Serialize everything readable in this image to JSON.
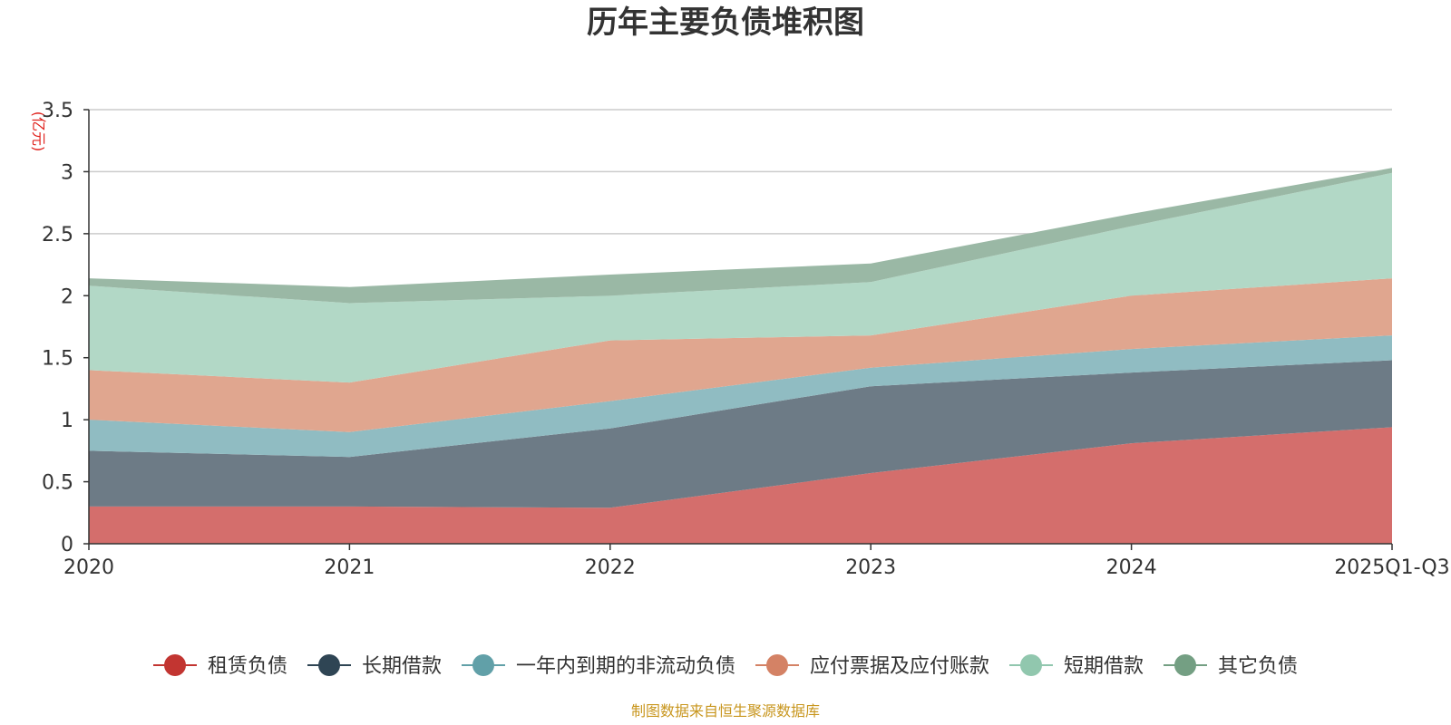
{
  "chart_data": {
    "type": "area",
    "stacked": true,
    "title": "历年主要负债堆积图",
    "ylabel": "(亿元)",
    "xlabel": "",
    "categories": [
      "2020",
      "2021",
      "2022",
      "2023",
      "2024",
      "2025Q1-Q3"
    ],
    "ylim": [
      0,
      3.5
    ],
    "yticks": [
      "0",
      "0.5",
      "1",
      "1.5",
      "2",
      "2.5",
      "3",
      "3.5"
    ],
    "ytick_values": [
      0,
      0.5,
      1,
      1.5,
      2,
      2.5,
      3,
      3.5
    ],
    "grid": true,
    "legend_position": "bottom",
    "series": [
      {
        "name": "租赁负债",
        "color": "#c23531",
        "fill": "#d46e6c",
        "values": [
          0.3,
          0.3,
          0.29,
          0.57,
          0.81,
          0.94
        ]
      },
      {
        "name": "长期借款",
        "color": "#2f4554",
        "fill": "#6d7b86",
        "values": [
          0.45,
          0.4,
          0.64,
          0.7,
          0.57,
          0.54
        ]
      },
      {
        "name": "一年内到期的非流动负债",
        "color": "#61a0a8",
        "fill": "#90bcc2",
        "values": [
          0.25,
          0.2,
          0.22,
          0.15,
          0.19,
          0.2
        ]
      },
      {
        "name": "应付票据及应付账款",
        "color": "#d48265",
        "fill": "#e0a68f",
        "values": [
          0.4,
          0.4,
          0.49,
          0.26,
          0.43,
          0.46
        ]
      },
      {
        "name": "短期借款",
        "color": "#91c7ae",
        "fill": "#b2d8c6",
        "values": [
          0.68,
          0.64,
          0.36,
          0.43,
          0.56,
          0.85
        ]
      },
      {
        "name": "其它负债",
        "color": "#749f83",
        "fill": "#9ab8a5",
        "values": [
          0.06,
          0.13,
          0.17,
          0.15,
          0.1,
          0.04
        ]
      }
    ],
    "source": "制图数据来自恒生聚源数据库"
  }
}
